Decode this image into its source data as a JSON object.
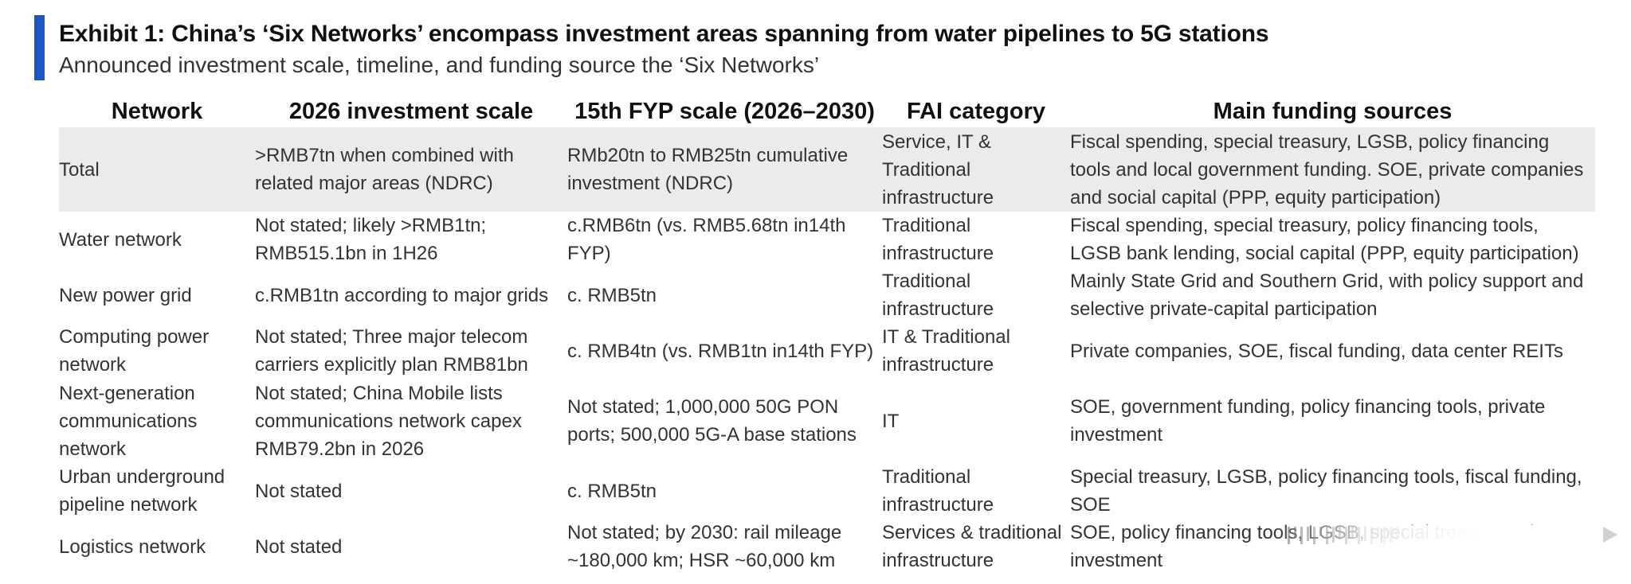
{
  "title": "Exhibit 1: China’s ‘Six Networks’ encompass investment areas spanning from water pipelines to 5G stations",
  "subtitle": "Announced investment scale, timeline, and funding source the ‘Six Networks’",
  "accent_color": "#1e56c7",
  "table": {
    "headers": [
      "Network",
      "2026 investment scale",
      "15th FYP scale (2026–2030)",
      "FAI category",
      "Main funding sources"
    ],
    "rows": [
      {
        "network": "Total",
        "investment_2026": ">RMB7tn when combined with related major areas (NDRC)",
        "fyp15_scale": "RMb20tn to RMB25tn cumulative investment (NDRC)",
        "fai_category": "Service, IT & Traditional infrastructure",
        "funding": "Fiscal spending, special treasury, LGSB, policy financing tools and local government funding. SOE, private companies and social capital (PPP, equity participation)"
      },
      {
        "network": "Water network",
        "investment_2026": "Not stated; likely >RMB1tn; RMB515.1bn in 1H26",
        "fyp15_scale": "c.RMB6tn (vs. RMB5.68tn in14th FYP)",
        "fai_category": "Traditional infrastructure",
        "funding": "Fiscal spending, special treasury, policy financing tools, LGSB bank lending, social capital (PPP, equity participation)"
      },
      {
        "network": "New power grid",
        "investment_2026": "c.RMB1tn according to major grids",
        "fyp15_scale": "c. RMB5tn",
        "fai_category": "Traditional infrastructure",
        "funding": "Mainly State Grid and Southern Grid, with policy support and selective private-capital participation"
      },
      {
        "network": "Computing power network",
        "investment_2026": "Not stated; Three major telecom carriers explicitly plan RMB81bn",
        "fyp15_scale": "c. RMB4tn (vs. RMB1tn in14th FYP)",
        "fai_category": "IT & Traditional infrastructure",
        "funding": "Private companies, SOE, fiscal funding, data center REITs"
      },
      {
        "network": "Next-generation communications network",
        "investment_2026": "Not stated; China Mobile lists communications network capex RMB79.2bn in 2026",
        "fyp15_scale": "Not stated; 1,000,000 50G PON ports; 500,000 5G-A base stations",
        "fai_category": "IT",
        "funding": "SOE, government funding, policy financing tools, private investment"
      },
      {
        "network": "Urban underground pipeline network",
        "investment_2026": "Not stated",
        "fyp15_scale": "c. RMB5tn",
        "fai_category": "Traditional infrastructure",
        "funding": "Special treasury, LGSB, policy financing tools, fiscal funding, SOE"
      },
      {
        "network": "Logistics network",
        "investment_2026": "Not stated",
        "fyp15_scale": "Not stated; by 2030: rail mileage ~180,000 km; HSR ~60,000 km",
        "fai_category": "Services & traditional infrastructure",
        "funding": "SOE, policy financing tools, LGSB, special treasury, private investment"
      }
    ]
  }
}
